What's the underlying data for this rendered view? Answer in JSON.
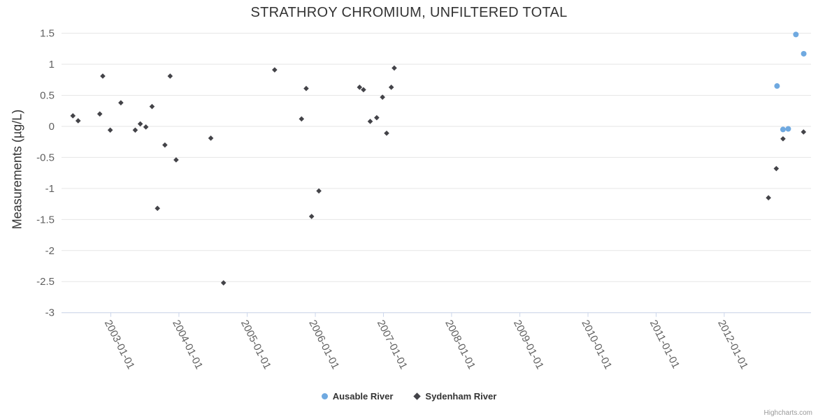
{
  "chart_data": {
    "type": "scatter",
    "title": "STRATHROY CHROMIUM, UNFILTERED TOTAL",
    "xlabel": "",
    "ylabel": "Measurements (µg/L)",
    "ylim": [
      -3,
      1.5
    ],
    "yticks": [
      "1.5",
      "1",
      "0.5",
      "0",
      "-0.5",
      "-1",
      "-1.5",
      "-2",
      "-2.5",
      "-3"
    ],
    "xlim": [
      "2002-04-12",
      "2013-04-10"
    ],
    "xticks": [
      "2003-01-01",
      "2004-01-01",
      "2005-01-01",
      "2006-01-01",
      "2007-01-01",
      "2008-01-01",
      "2009-01-01",
      "2010-01-01",
      "2011-01-01",
      "2012-01-01"
    ],
    "grid": "horizontal-only",
    "legend_position": "bottom-center",
    "credits": "Highcharts.com",
    "colors": {
      "grid": "#e6e6e6",
      "axis_line": "#ccd6eb",
      "tick_label": "#606060",
      "title": "#333333"
    },
    "series": [
      {
        "name": "Ausable River",
        "color": "#6fa9e0",
        "marker": "circle",
        "points": [
          [
            "2012-10-10",
            0.65
          ],
          [
            "2012-11-11",
            -0.05
          ],
          [
            "2012-12-09",
            -0.04
          ],
          [
            "2013-01-19",
            1.48
          ],
          [
            "2013-03-02",
            1.17
          ]
        ]
      },
      {
        "name": "Sydenham River",
        "color": "#434348",
        "marker": "diamond",
        "points": [
          [
            "2002-06-12",
            0.17
          ],
          [
            "2002-07-10",
            0.09
          ],
          [
            "2002-11-03",
            0.2
          ],
          [
            "2002-11-19",
            0.81
          ],
          [
            "2002-12-29",
            -0.06
          ],
          [
            "2003-02-24",
            0.38
          ],
          [
            "2003-05-12",
            -0.06
          ],
          [
            "2003-06-08",
            0.04
          ],
          [
            "2003-07-08",
            -0.01
          ],
          [
            "2003-08-10",
            0.32
          ],
          [
            "2003-09-08",
            -1.32
          ],
          [
            "2003-10-18",
            -0.3
          ],
          [
            "2003-11-15",
            0.81
          ],
          [
            "2003-12-17",
            -0.54
          ],
          [
            "2004-06-20",
            -0.19
          ],
          [
            "2004-08-27",
            -2.52
          ],
          [
            "2005-05-28",
            0.91
          ],
          [
            "2005-10-19",
            0.12
          ],
          [
            "2005-11-13",
            0.61
          ],
          [
            "2005-12-12",
            -1.45
          ],
          [
            "2006-01-20",
            -1.04
          ],
          [
            "2006-08-26",
            0.63
          ],
          [
            "2006-09-16",
            0.59
          ],
          [
            "2006-10-22",
            0.08
          ],
          [
            "2006-11-26",
            0.14
          ],
          [
            "2006-12-27",
            0.47
          ],
          [
            "2007-01-18",
            -0.11
          ],
          [
            "2007-02-12",
            0.63
          ],
          [
            "2007-02-28",
            0.94
          ],
          [
            "2012-08-25",
            -1.15
          ],
          [
            "2012-10-06",
            -0.68
          ],
          [
            "2012-11-11",
            -0.2
          ],
          [
            "2013-03-01",
            -0.09
          ]
        ]
      }
    ]
  }
}
